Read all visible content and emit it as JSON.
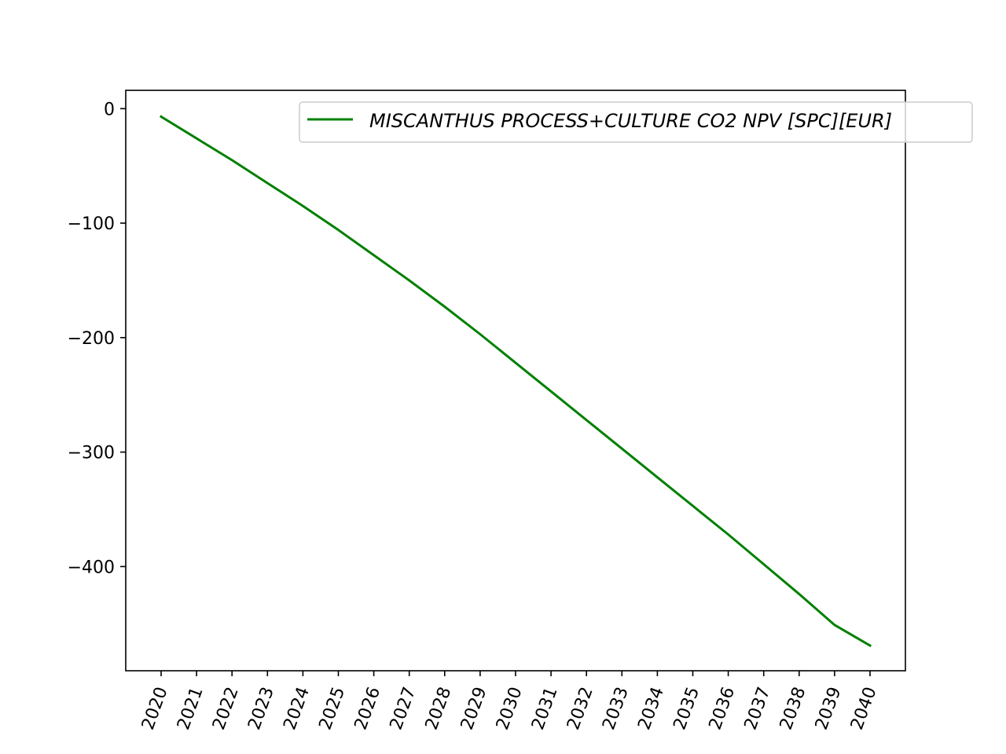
{
  "chart_data": {
    "type": "line",
    "title": "",
    "xlabel": "",
    "ylabel": "",
    "x": [
      "2020",
      "2021",
      "2022",
      "2023",
      "2024",
      "2025",
      "2026",
      "2027",
      "2028",
      "2029",
      "2030",
      "2031",
      "2032",
      "2033",
      "2034",
      "2035",
      "2036",
      "2037",
      "2038",
      "2039",
      "2040"
    ],
    "series": [
      {
        "name": "MISCANTHUS PROCESS+CULTURE CO2 NPV [SPC][EUR]",
        "color": "#008000",
        "values": [
          -7,
          -26,
          -45,
          -65,
          -85,
          -106,
          -128,
          -150,
          -173,
          -197,
          -222,
          -247,
          -272,
          -297,
          -322,
          -347,
          -372,
          -398,
          -424,
          -451,
          -469
        ]
      }
    ],
    "yticks": [
      0,
      -100,
      -200,
      -300,
      -400
    ],
    "ytick_labels": [
      "0",
      "−100",
      "−200",
      "−300",
      "−400"
    ],
    "ylim": [
      -491,
      16
    ],
    "grid": false,
    "legend": "upper-right"
  }
}
